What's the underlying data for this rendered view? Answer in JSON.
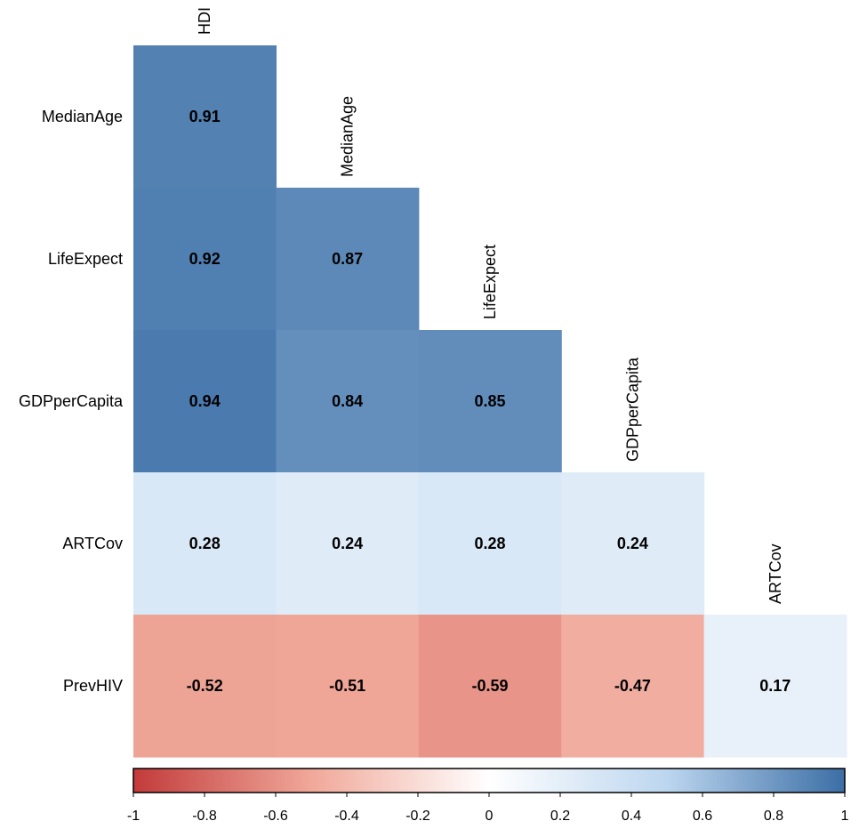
{
  "chart_data": {
    "type": "heatmap",
    "subtype": "correlation-lower-triangle",
    "columns": [
      "HDI",
      "MedianAge",
      "LifeExpect",
      "GDPperCapita",
      "ARTCov"
    ],
    "rows": [
      "MedianAge",
      "LifeExpect",
      "GDPperCapita",
      "ARTCov",
      "PrevHIV"
    ],
    "cells": [
      {
        "row": "MedianAge",
        "col": "HDI",
        "value": 0.91,
        "label": "0.91"
      },
      {
        "row": "LifeExpect",
        "col": "HDI",
        "value": 0.92,
        "label": "0.92"
      },
      {
        "row": "LifeExpect",
        "col": "MedianAge",
        "value": 0.87,
        "label": "0.87"
      },
      {
        "row": "GDPperCapita",
        "col": "HDI",
        "value": 0.94,
        "label": "0.94"
      },
      {
        "row": "GDPperCapita",
        "col": "MedianAge",
        "value": 0.84,
        "label": "0.84"
      },
      {
        "row": "GDPperCapita",
        "col": "LifeExpect",
        "value": 0.85,
        "label": "0.85"
      },
      {
        "row": "ARTCov",
        "col": "HDI",
        "value": 0.28,
        "label": "0.28"
      },
      {
        "row": "ARTCov",
        "col": "MedianAge",
        "value": 0.24,
        "label": "0.24"
      },
      {
        "row": "ARTCov",
        "col": "LifeExpect",
        "value": 0.28,
        "label": "0.28"
      },
      {
        "row": "ARTCov",
        "col": "GDPperCapita",
        "value": 0.24,
        "label": "0.24"
      },
      {
        "row": "PrevHIV",
        "col": "HDI",
        "value": -0.52,
        "label": "-0.52"
      },
      {
        "row": "PrevHIV",
        "col": "MedianAge",
        "value": -0.51,
        "label": "-0.51"
      },
      {
        "row": "PrevHIV",
        "col": "LifeExpect",
        "value": -0.59,
        "label": "-0.59"
      },
      {
        "row": "PrevHIV",
        "col": "GDPperCapita",
        "value": -0.47,
        "label": "-0.47"
      },
      {
        "row": "PrevHIV",
        "col": "ARTCov",
        "value": 0.17,
        "label": "0.17"
      }
    ],
    "colorbar": {
      "range": [
        -1,
        1
      ],
      "ticks": [
        -1,
        -0.8,
        -0.6,
        -0.4,
        -0.2,
        0,
        0.2,
        0.4,
        0.6,
        0.8,
        1
      ],
      "tick_labels": [
        "-1",
        "-0.8",
        "-0.6",
        "-0.4",
        "-0.2",
        "0",
        "0.2",
        "0.4",
        "0.6",
        "0.8",
        "1"
      ],
      "colors": {
        "negative": "#c23b3b",
        "mid_negative": "#f0a899",
        "zero": "#ffffff",
        "mid_positive": "#bcd6ef",
        "positive": "#3b6ea5"
      }
    }
  }
}
